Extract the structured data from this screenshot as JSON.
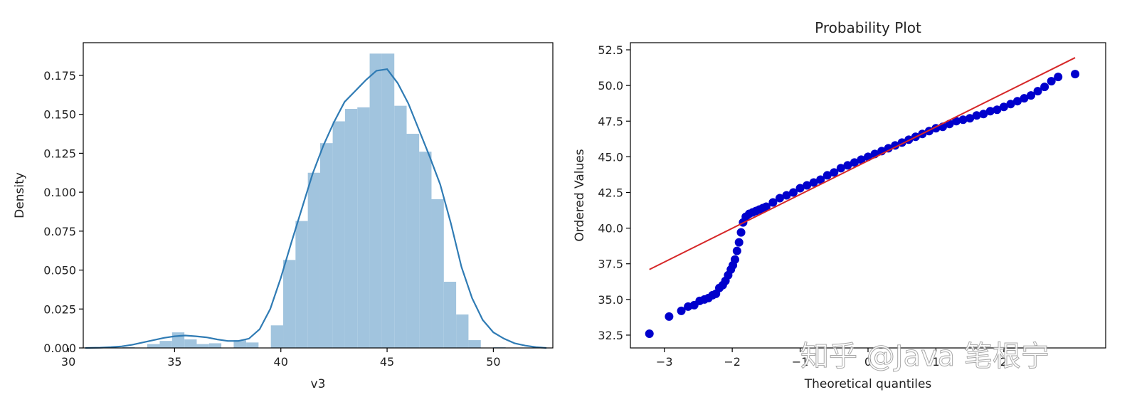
{
  "watermark": "知乎 @Java 笔根宁",
  "chart_data": [
    {
      "type": "bar",
      "title": "",
      "xlabel": "v3",
      "ylabel": "Density",
      "xlim": [
        30.7,
        52.8
      ],
      "ylim": [
        0,
        0.196
      ],
      "xticks": [
        30,
        35,
        40,
        45,
        50
      ],
      "xtick_labels": [
        "30",
        "35",
        "40",
        "45",
        "50"
      ],
      "yticks": [
        0,
        0.025,
        0.05,
        0.075,
        0.1,
        0.125,
        0.15,
        0.175
      ],
      "ytick_labels": [
        "0.000",
        "0.025",
        "0.050",
        "0.075",
        "0.100",
        "0.125",
        "0.150",
        "0.175"
      ],
      "grid": false,
      "hist_color": "#a1c4de",
      "kde_color": "#2f7bb4",
      "bins": {
        "edges": [
          32.55,
          33.13,
          33.71,
          34.3,
          34.88,
          35.46,
          36.04,
          36.62,
          37.2,
          37.78,
          38.37,
          38.95,
          39.53,
          40.11,
          40.69,
          41.27,
          41.85,
          42.44,
          43.02,
          43.6,
          44.18,
          44.76,
          45.34,
          45.92,
          46.51,
          47.09,
          47.67,
          48.25,
          48.83,
          49.41,
          49.99,
          50.58
        ],
        "values": [
          0.0005,
          0.0,
          0.0025,
          0.0045,
          0.01,
          0.0055,
          0.0025,
          0.003,
          0.0,
          0.005,
          0.0035,
          0.0,
          0.0145,
          0.0565,
          0.0815,
          0.1125,
          0.1315,
          0.1455,
          0.1535,
          0.1545,
          0.189,
          0.189,
          0.1555,
          0.1375,
          0.126,
          0.0955,
          0.0425,
          0.0215,
          0.005,
          0.0,
          0.0005
        ]
      },
      "kde": {
        "x": [
          30.8,
          31.5,
          32.0,
          32.5,
          33.0,
          33.5,
          34.0,
          34.5,
          35.0,
          35.5,
          36.0,
          36.5,
          37.0,
          37.5,
          38.0,
          38.5,
          39.0,
          39.5,
          40.0,
          40.5,
          41.0,
          41.5,
          42.0,
          42.5,
          43.0,
          43.5,
          44.0,
          44.5,
          45.0,
          45.5,
          46.0,
          46.5,
          47.0,
          47.5,
          48.0,
          48.5,
          49.0,
          49.5,
          50.0,
          50.5,
          51.0,
          51.5,
          52.0,
          52.5
        ],
        "y": [
          0.0,
          0.0002,
          0.0005,
          0.001,
          0.002,
          0.0035,
          0.005,
          0.0065,
          0.0075,
          0.008,
          0.0075,
          0.0068,
          0.0055,
          0.0045,
          0.0045,
          0.006,
          0.012,
          0.025,
          0.045,
          0.068,
          0.09,
          0.112,
          0.13,
          0.145,
          0.158,
          0.165,
          0.172,
          0.178,
          0.179,
          0.17,
          0.157,
          0.14,
          0.123,
          0.105,
          0.08,
          0.052,
          0.032,
          0.018,
          0.01,
          0.006,
          0.003,
          0.0015,
          0.0005,
          0.0
        ]
      }
    },
    {
      "type": "scatter",
      "title": "Probability Plot",
      "xlabel": "Theoretical quantiles",
      "ylabel": "Ordered Values",
      "xlim": [
        -3.5,
        3.5
      ],
      "ylim": [
        31.6,
        53.0
      ],
      "xticks": [
        -3,
        -2,
        -1,
        0,
        1,
        2
      ],
      "xtick_labels": [
        "−3",
        "−2",
        "−1",
        "0",
        "1",
        "2"
      ],
      "yticks": [
        32.5,
        35.0,
        37.5,
        40.0,
        42.5,
        45.0,
        47.5,
        50.0,
        52.5
      ],
      "ytick_labels": [
        "32.5",
        "35.0",
        "37.5",
        "40.0",
        "42.5",
        "45.0",
        "47.5",
        "50.0",
        "52.5"
      ],
      "grid": false,
      "point_color": "#0000cc",
      "line_color": "#d62728",
      "fit_line": {
        "x": [
          -3.22,
          3.05
        ],
        "y": [
          37.1,
          51.95
        ]
      },
      "points": {
        "x": [
          -3.22,
          -2.93,
          -2.75,
          -2.65,
          -2.56,
          -2.48,
          -2.41,
          -2.35,
          -2.29,
          -2.24,
          -2.19,
          -2.14,
          -2.1,
          -2.06,
          -2.02,
          -1.99,
          -1.96,
          -1.93,
          -1.9,
          -1.87,
          -1.84,
          -1.8,
          -1.75,
          -1.7,
          -1.65,
          -1.6,
          -1.55,
          -1.5,
          -1.4,
          -1.3,
          -1.2,
          -1.1,
          -1.0,
          -0.9,
          -0.8,
          -0.7,
          -0.6,
          -0.5,
          -0.4,
          -0.3,
          -0.2,
          -0.1,
          0.0,
          0.1,
          0.2,
          0.3,
          0.4,
          0.5,
          0.6,
          0.7,
          0.8,
          0.9,
          1.0,
          1.1,
          1.2,
          1.3,
          1.4,
          1.5,
          1.6,
          1.7,
          1.8,
          1.9,
          2.0,
          2.1,
          2.2,
          2.3,
          2.4,
          2.5,
          2.6,
          2.7,
          2.8,
          3.05
        ],
        "y": [
          32.6,
          33.8,
          34.2,
          34.5,
          34.6,
          34.9,
          35.0,
          35.1,
          35.3,
          35.4,
          35.8,
          36.0,
          36.3,
          36.7,
          37.1,
          37.4,
          37.8,
          38.4,
          39.0,
          39.7,
          40.4,
          40.8,
          41.0,
          41.1,
          41.2,
          41.3,
          41.4,
          41.5,
          41.8,
          42.1,
          42.3,
          42.5,
          42.8,
          43.0,
          43.2,
          43.4,
          43.7,
          43.9,
          44.2,
          44.4,
          44.6,
          44.8,
          45.0,
          45.2,
          45.4,
          45.6,
          45.8,
          46.0,
          46.2,
          46.4,
          46.6,
          46.8,
          47.0,
          47.1,
          47.3,
          47.5,
          47.6,
          47.7,
          47.9,
          48.0,
          48.2,
          48.3,
          48.5,
          48.7,
          48.9,
          49.1,
          49.3,
          49.6,
          49.9,
          50.3,
          50.6,
          50.8
        ]
      }
    }
  ]
}
